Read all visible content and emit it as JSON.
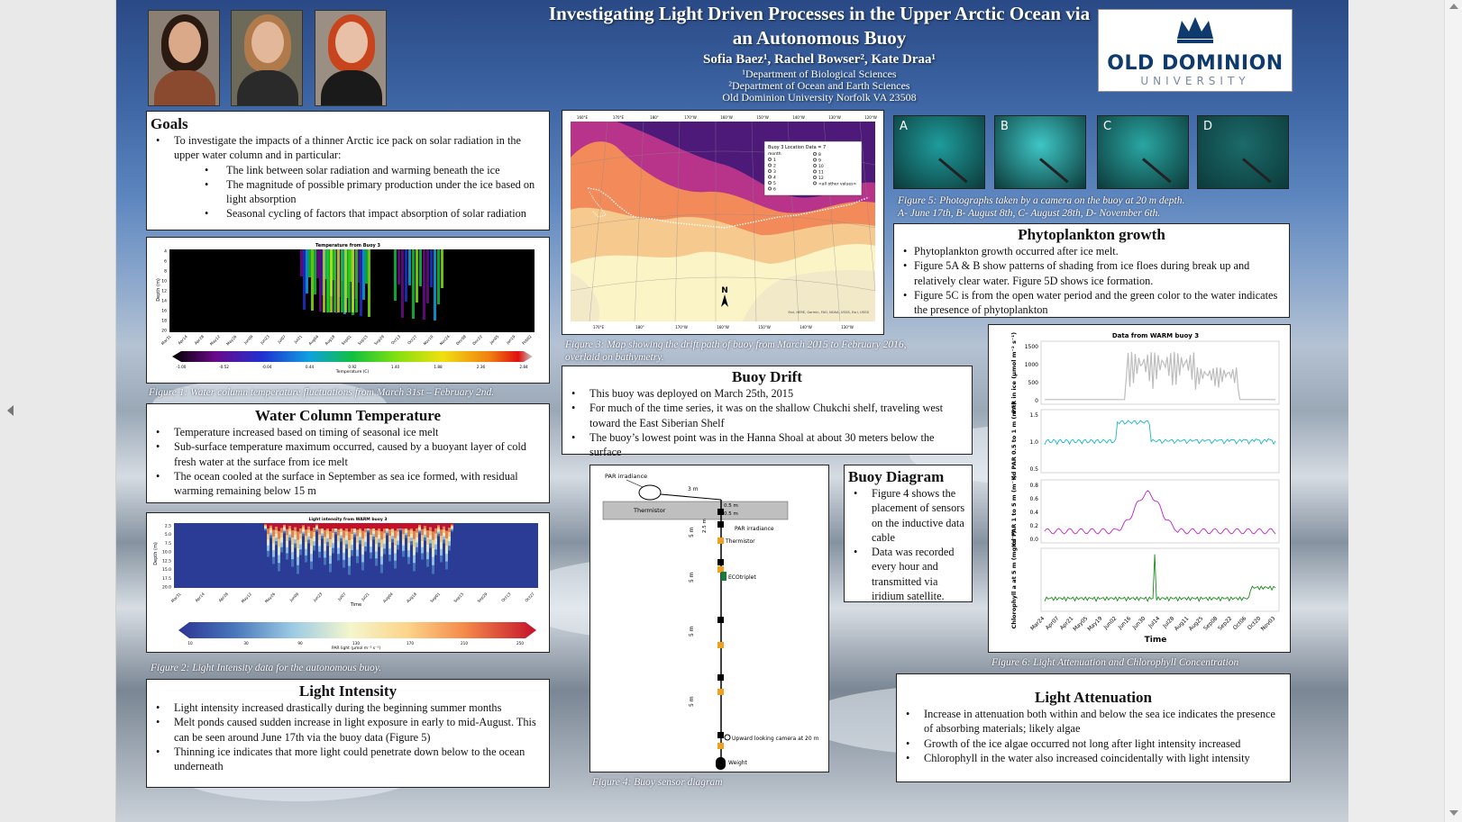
{
  "title": {
    "line1": "Investigating Light Driven Processes in the Upper Arctic Ocean via",
    "line2": "an Autonomous Buoy",
    "authors": "Sofia Baez¹, Rachel Bowser², Kate Draa¹",
    "affil1": "¹Department of Biological Sciences",
    "affil2": "²Department of Ocean and Earth Sciences",
    "affil3": "Old Dominion University Norfolk VA 23508"
  },
  "logo": {
    "name": "OLD DOMINION",
    "sub": "UNIVERSITY"
  },
  "goals": {
    "heading": "Goals",
    "intro": "To investigate the impacts of a thinner Arctic ice pack on solar radiation in the upper water column and in particular:",
    "items": [
      "The link between solar radiation and warming beneath the ice",
      "The magnitude of possible primary production under the ice based on light absorption",
      "Seasonal cycling of factors that impact absorption of solar radiation"
    ]
  },
  "fig1": {
    "caption": "Figure 1: Water column temperature fluctuations from March 31st – February 2nd.",
    "chart_title": "Temperature from Buoy 3",
    "ylabel": "Depth (m)",
    "cbar_label": "Temperature (C)",
    "yticks": [
      "4",
      "6",
      "8",
      "10",
      "12",
      "14",
      "16",
      "18",
      "20"
    ],
    "xticks": [
      "Mar31",
      "Apr14",
      "Apr28",
      "May12",
      "May26",
      "Jun09",
      "Jun23",
      "Jul07",
      "Jul21",
      "Aug04",
      "Aug18",
      "Sep01",
      "Sep15",
      "Sep29",
      "Oct13",
      "Oct27",
      "Nov10",
      "Nov24",
      "Dec08",
      "Dec22",
      "Jan05",
      "Jan19",
      "Feb02"
    ],
    "cbar_ticks": [
      "-1.00",
      "-0.52",
      "-0.04",
      "0.44",
      "0.92",
      "1.40",
      "1.88",
      "2.36",
      "2.84"
    ]
  },
  "wct": {
    "heading": "Water Column Temperature",
    "items": [
      "Temperature increased based on timing of seasonal ice melt",
      "Sub-surface temperature maximum occurred, caused by a buoyant layer of cold fresh water at the surface from ice melt",
      "The ocean cooled at the surface in September as sea ice formed, with residual warming remaining below 15 m"
    ]
  },
  "fig2": {
    "caption": "Figure 2: Light Intensity data for the autonomous buoy.",
    "chart_title": "Light intensity from WARM buoy 3",
    "ylabel": "Depth (m)",
    "xlabel": "Time",
    "cbar_label": "PAR light (μmol m⁻² s⁻¹)",
    "yticks": [
      "2.5",
      "5.0",
      "7.5",
      "10.0",
      "12.5",
      "15.0",
      "17.5",
      "20.0"
    ],
    "xticks": [
      "Mar31",
      "Apr14",
      "Apr28",
      "May12",
      "May26",
      "Jun09",
      "Jun23",
      "Jul07",
      "Jul21",
      "Aug04",
      "Aug18",
      "Sep01",
      "Sep15",
      "Sep29",
      "Oct13",
      "Oct27"
    ],
    "cbar_ticks": [
      "10",
      "30",
      "90",
      "130",
      "170",
      "210",
      "250"
    ]
  },
  "light": {
    "heading": "Light Intensity",
    "items": [
      "Light intensity increased drastically during the beginning summer months",
      "Melt ponds caused sudden increase in light exposure in early to mid-August. This can be seen around June 17th via the buoy data (Figure 5)",
      "Thinning ice indicates that more light could penetrate down below to the ocean underneath"
    ]
  },
  "fig3": {
    "caption": "Figure 3: Map showing the drift path of buoy from March 2015 to February 2016, overlaid on bathymetry.",
    "top_ticks": [
      "160°E",
      "170°E",
      "180°",
      "170°W",
      "160°W",
      "150°W",
      "140°W",
      "130°W",
      "120°W"
    ],
    "bottom_ticks": [
      "170°E",
      "180°",
      "170°W",
      "160°W",
      "150°W",
      "140°W",
      "130°W"
    ],
    "legend_title": "Buoy 3 Location Data = 7",
    "legend_col_head": "month",
    "legend_rows": [
      "1",
      "2",
      "3",
      "4",
      "5",
      "6"
    ],
    "legend_rows2": [
      "8",
      "9",
      "10",
      "11",
      "12",
      "<all other values>"
    ],
    "north": "N",
    "credit": "Esri, HERE, Garmin, FAO, NOAA, USGS, Esri, USGS"
  },
  "drift": {
    "heading": "Buoy Drift",
    "items": [
      "This buoy was deployed on March 25th, 2015",
      "For much of the time series, it was on the shallow Chukchi shelf, traveling west toward the East Siberian Shelf",
      "The buoy’s lowest point was in the Hanna Shoal at about 30 meters below the surface"
    ]
  },
  "fig4": {
    "caption": "Figure 4: Buoy sensor diagram",
    "par_irr": "PAR irradiance",
    "thermistor": "Thermistor",
    "d3m": "3 m",
    "d05a": "0.5 m",
    "d05b": "0.5 m",
    "d25": "2.5 m",
    "par_label": "PAR irradiance",
    "therm_label": "Thermistor",
    "eco": "ECOtriplet",
    "d5a": "5 m",
    "d5b": "5 m",
    "d5c": "5 m",
    "d5d": "5 m",
    "camera": "Upward looking camera at 20 m",
    "weight": "Weight"
  },
  "diagram": {
    "heading": "Buoy Diagram",
    "items": [
      "Figure 4 shows the placement of sensors on the inductive data cable",
      "Data was recorded every hour and transmitted via iridium satellite."
    ]
  },
  "fig5": {
    "labels": [
      "A",
      "B",
      "C",
      "D"
    ],
    "colors": [
      "#1f9c9c",
      "#3fc6c6",
      "#2aa6a2",
      "#1c6a6a"
    ],
    "caption1": "Figure 5: Photographs taken by a camera on the buoy at 20 m depth.",
    "caption2": "A- June 17th, B- August 8th, C- August 28th, D- November 6th."
  },
  "phyto": {
    "heading": "Phytoplankton growth",
    "items": [
      "Phytoplankton growth occurred after ice melt.",
      "Figure 5A & B show patterns of shading from ice floes during break up and relatively clear water. Figure 5D shows ice formation.",
      "Figure 5C is from the open water period and the green color to the water indicates the presence of phytoplankton"
    ]
  },
  "fig6": {
    "caption": "Figure 6: Light Attenuation and Chlorophyll Concentration",
    "chart_title": "Data from WARM buoy 3",
    "xlabel": "Time",
    "xticks": [
      "Mar24",
      "Apr07",
      "Apr21",
      "May05",
      "May19",
      "Jun02",
      "Jun16",
      "Jun30",
      "Jul14",
      "Jul28",
      "Aug11",
      "Aug25",
      "Sep08",
      "Sep22",
      "Oct06",
      "Oct20",
      "Nov03"
    ],
    "panels": [
      {
        "ylabel": "PAR in ice (μmol m⁻² s⁻¹)",
        "yticks": [
          "1500",
          "1000",
          "500",
          "0"
        ],
        "color": "#bdbdbd"
      },
      {
        "ylabel": "Kd PAR 0.5 to 1 m (m⁻¹)",
        "yticks": [
          "1.5",
          "1.0",
          "0.5"
        ],
        "color": "#17b8c6"
      },
      {
        "ylabel": "Kd PAR 1 to 5 m (m⁻¹)",
        "yticks": [
          "0.8",
          "0.6",
          "0.4",
          "0.2",
          "0.0"
        ],
        "color": "#c21fc6"
      },
      {
        "ylabel": "Chlorophyll a at 5 m (mg m⁻³)",
        "yticks": [],
        "color": "#1a8a1a"
      }
    ]
  },
  "atten": {
    "heading": "Light Attenuation",
    "items": [
      "Increase in attenuation both within and below the sea ice indicates the presence of absorbing materials; likely algae",
      "Growth of the ice algae occurred not long after light intensity increased",
      "Chlorophyll in the water also increased coincidentally with light intensity"
    ]
  }
}
